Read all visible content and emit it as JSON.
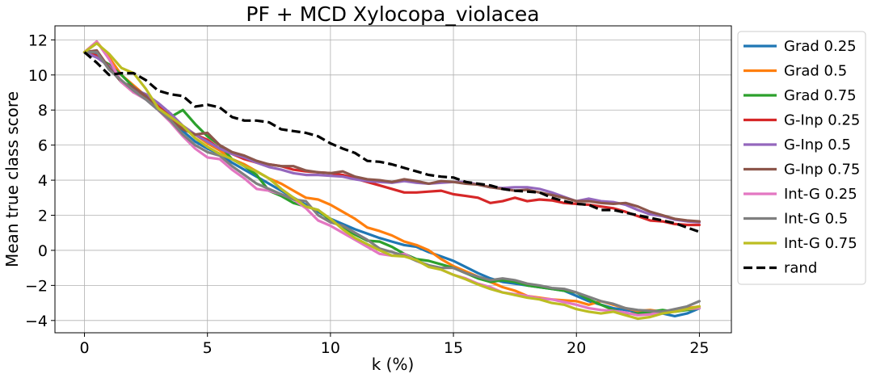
{
  "chart_data": {
    "type": "line",
    "title": "PF + MCD Xylocopa_violacea",
    "xlabel": "k (%)",
    "ylabel": "Mean true class score",
    "xlim": [
      -1.2,
      26.3
    ],
    "ylim": [
      -4.7,
      12.8
    ],
    "xticks": [
      0,
      5,
      10,
      15,
      20,
      25
    ],
    "yticks": [
      -4,
      -2,
      0,
      2,
      4,
      6,
      8,
      10,
      12
    ],
    "grid": true,
    "legend_position": "outside right",
    "x": [
      0,
      0.5,
      1,
      1.5,
      2,
      2.5,
      3,
      3.5,
      4,
      4.5,
      5,
      5.5,
      6,
      6.5,
      7,
      7.5,
      8,
      8.5,
      9,
      9.5,
      10,
      10.5,
      11,
      11.5,
      12,
      12.5,
      13,
      13.5,
      14,
      14.5,
      15,
      15.5,
      16,
      16.5,
      17,
      17.5,
      18,
      18.5,
      19,
      19.5,
      20,
      20.5,
      21,
      21.5,
      22,
      22.5,
      23,
      23.5,
      24,
      24.5,
      25
    ],
    "series": [
      {
        "name": "Grad 0.25",
        "color": "#1f77b4",
        "dashed": false,
        "values": [
          11.3,
          11.2,
          10.4,
          9.6,
          9.1,
          8.6,
          8.0,
          7.4,
          6.8,
          6.2,
          5.8,
          5.5,
          5.0,
          4.6,
          4.2,
          3.8,
          3.4,
          3.0,
          2.6,
          2.2,
          1.8,
          1.5,
          1.2,
          0.95,
          0.7,
          0.5,
          0.3,
          0.2,
          -0.1,
          -0.35,
          -0.6,
          -0.95,
          -1.3,
          -1.6,
          -1.8,
          -1.9,
          -2.0,
          -2.1,
          -2.2,
          -2.3,
          -2.6,
          -2.9,
          -3.1,
          -3.3,
          -3.4,
          -3.5,
          -3.55,
          -3.6,
          -3.75,
          -3.6,
          -3.3
        ]
      },
      {
        "name": "Grad 0.5",
        "color": "#ff7f0e",
        "dashed": false,
        "values": [
          11.3,
          11.9,
          11.0,
          10.0,
          9.4,
          8.8,
          8.3,
          7.7,
          7.1,
          6.6,
          6.1,
          5.7,
          5.2,
          4.9,
          4.5,
          4.1,
          3.8,
          3.4,
          3.0,
          2.9,
          2.6,
          2.2,
          1.8,
          1.3,
          1.1,
          0.85,
          0.5,
          0.3,
          0.0,
          -0.5,
          -0.9,
          -1.2,
          -1.5,
          -1.8,
          -2.1,
          -2.3,
          -2.6,
          -2.7,
          -2.8,
          -2.85,
          -2.9,
          -3.1,
          -2.9,
          -3.1,
          -3.3,
          -3.45,
          -3.4,
          -3.5,
          -3.5,
          -3.3,
          -3.2
        ]
      },
      {
        "name": "Grad 0.75",
        "color": "#2ca02c",
        "dashed": false,
        "values": [
          11.3,
          11.0,
          10.6,
          10.0,
          9.3,
          8.7,
          8.2,
          7.6,
          8.0,
          7.2,
          6.5,
          6.0,
          5.2,
          4.8,
          4.3,
          3.4,
          3.1,
          2.7,
          2.5,
          2.3,
          1.7,
          1.3,
          0.9,
          0.55,
          0.5,
          0.2,
          -0.2,
          -0.5,
          -0.6,
          -0.8,
          -1.0,
          -1.3,
          -1.6,
          -1.8,
          -1.7,
          -1.8,
          -2.0,
          -2.1,
          -2.2,
          -2.3,
          -2.4,
          -2.8,
          -3.1,
          -3.4,
          -3.6,
          -3.6,
          -3.5,
          -3.4,
          -3.5,
          -3.4,
          -3.3
        ]
      },
      {
        "name": "G-Inp 0.25",
        "color": "#d62728",
        "dashed": false,
        "values": [
          11.3,
          11.1,
          10.5,
          9.6,
          9.0,
          8.8,
          8.2,
          7.6,
          7.0,
          6.6,
          6.3,
          5.8,
          5.5,
          5.2,
          5.0,
          4.9,
          4.8,
          4.6,
          4.5,
          4.45,
          4.4,
          4.3,
          4.1,
          3.9,
          3.7,
          3.5,
          3.3,
          3.3,
          3.35,
          3.4,
          3.2,
          3.1,
          3.0,
          2.7,
          2.8,
          3.0,
          2.8,
          2.9,
          2.85,
          2.7,
          2.65,
          2.6,
          2.5,
          2.4,
          2.2,
          1.95,
          1.7,
          1.65,
          1.5,
          1.45,
          1.45
        ]
      },
      {
        "name": "G-Inp 0.5",
        "color": "#9467bd",
        "dashed": false,
        "values": [
          11.3,
          11.0,
          10.5,
          9.6,
          9.2,
          8.9,
          8.4,
          7.8,
          7.1,
          6.6,
          6.2,
          5.8,
          5.5,
          5.3,
          5.0,
          4.75,
          4.6,
          4.4,
          4.3,
          4.3,
          4.25,
          4.2,
          4.05,
          3.95,
          3.9,
          3.85,
          3.95,
          3.85,
          3.8,
          3.85,
          3.9,
          3.9,
          3.75,
          3.6,
          3.55,
          3.6,
          3.6,
          3.5,
          3.3,
          3.05,
          2.8,
          2.95,
          2.8,
          2.75,
          2.6,
          2.3,
          2.05,
          1.95,
          1.75,
          1.65,
          1.6
        ]
      },
      {
        "name": "G-Inp 0.75",
        "color": "#8c564b",
        "dashed": false,
        "values": [
          11.3,
          11.4,
          10.4,
          9.6,
          9.3,
          8.8,
          8.0,
          7.4,
          6.9,
          6.6,
          6.7,
          6.0,
          5.6,
          5.4,
          5.1,
          4.9,
          4.8,
          4.8,
          4.55,
          4.45,
          4.4,
          4.5,
          4.2,
          4.05,
          4.0,
          3.9,
          4.05,
          3.95,
          3.8,
          3.95,
          3.9,
          3.8,
          3.75,
          3.6,
          3.5,
          3.4,
          3.45,
          3.3,
          3.15,
          3.0,
          2.8,
          2.8,
          2.7,
          2.65,
          2.7,
          2.5,
          2.2,
          2.0,
          1.8,
          1.7,
          1.65
        ]
      },
      {
        "name": "Int-G 0.25",
        "color": "#e377c2",
        "dashed": false,
        "values": [
          11.3,
          11.9,
          10.9,
          9.6,
          9.0,
          8.6,
          8.0,
          7.3,
          6.5,
          5.8,
          5.3,
          5.2,
          4.6,
          4.1,
          3.5,
          3.4,
          3.2,
          2.9,
          2.4,
          1.7,
          1.4,
          1.0,
          0.6,
          0.2,
          -0.2,
          -0.3,
          -0.2,
          -0.6,
          -0.9,
          -1.1,
          -1.4,
          -1.6,
          -1.9,
          -2.1,
          -2.4,
          -2.5,
          -2.6,
          -2.75,
          -2.8,
          -2.95,
          -3.1,
          -3.3,
          -3.4,
          -3.45,
          -3.55,
          -3.7,
          -3.65,
          -3.5,
          -3.4,
          -3.35,
          -3.3
        ]
      },
      {
        "name": "Int-G 0.5",
        "color": "#7f7f7f",
        "dashed": false,
        "values": [
          11.3,
          11.3,
          10.3,
          9.7,
          9.1,
          8.6,
          8.0,
          7.4,
          6.6,
          6.0,
          5.6,
          5.4,
          4.8,
          4.3,
          3.8,
          3.5,
          3.2,
          2.9,
          2.8,
          2.0,
          1.6,
          1.4,
          1.0,
          0.6,
          0.1,
          -0.1,
          -0.3,
          -0.6,
          -0.85,
          -1.0,
          -1.0,
          -1.3,
          -1.5,
          -1.7,
          -1.6,
          -1.7,
          -1.9,
          -2.0,
          -2.15,
          -2.2,
          -2.4,
          -2.65,
          -2.9,
          -3.05,
          -3.3,
          -3.4,
          -3.45,
          -3.5,
          -3.35,
          -3.2,
          -2.9
        ]
      },
      {
        "name": "Int-G 0.75",
        "color": "#bcbd22",
        "dashed": false,
        "values": [
          11.3,
          11.8,
          11.2,
          10.4,
          10.1,
          9.2,
          8.1,
          7.6,
          7.1,
          6.4,
          5.9,
          5.5,
          5.2,
          4.8,
          4.5,
          4.1,
          3.5,
          3.0,
          2.5,
          2.3,
          1.8,
          1.2,
          0.7,
          0.35,
          0.0,
          -0.3,
          -0.35,
          -0.55,
          -0.95,
          -1.1,
          -1.4,
          -1.65,
          -1.95,
          -2.2,
          -2.4,
          -2.55,
          -2.7,
          -2.8,
          -3.0,
          -3.1,
          -3.35,
          -3.5,
          -3.6,
          -3.5,
          -3.7,
          -3.9,
          -3.8,
          -3.6,
          -3.5,
          -3.35,
          -3.2
        ]
      },
      {
        "name": "rand",
        "color": "#000000",
        "dashed": true,
        "values": [
          11.3,
          10.7,
          10.0,
          10.1,
          10.1,
          9.7,
          9.1,
          8.9,
          8.8,
          8.2,
          8.3,
          8.15,
          7.6,
          7.4,
          7.4,
          7.3,
          6.9,
          6.8,
          6.7,
          6.5,
          6.1,
          5.8,
          5.55,
          5.1,
          5.05,
          4.9,
          4.7,
          4.5,
          4.3,
          4.2,
          4.15,
          3.9,
          3.8,
          3.7,
          3.5,
          3.4,
          3.35,
          3.3,
          3.0,
          2.8,
          2.65,
          2.6,
          2.3,
          2.3,
          2.15,
          2.0,
          1.85,
          1.7,
          1.55,
          1.3,
          1.05
        ]
      }
    ]
  }
}
